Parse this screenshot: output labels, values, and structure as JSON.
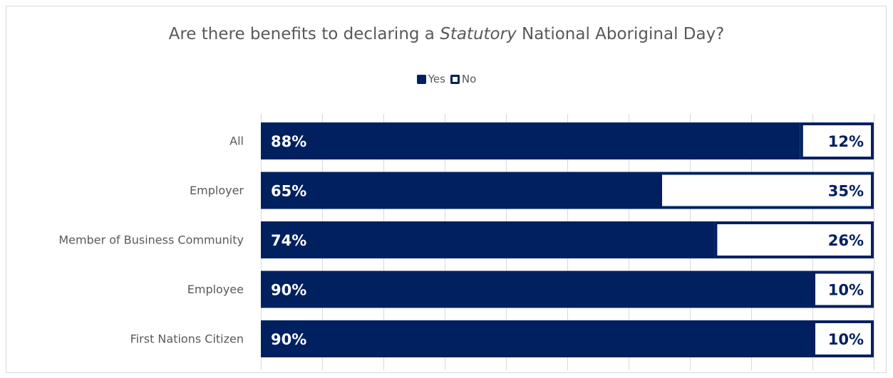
{
  "chart_data": {
    "type": "bar",
    "orientation": "horizontal",
    "stacked": true,
    "title_prefix": "Are there benefits to declaring a ",
    "title_emphasis": "Statutory",
    "title_suffix": " National Aboriginal Day?",
    "xlabel": "",
    "ylabel": "",
    "xlim": [
      0,
      100
    ],
    "grid": true,
    "legend_position": "top",
    "categories": [
      "All",
      "Employer",
      "Member of Business Community",
      "Employee",
      "First Nations Citizen"
    ],
    "series": [
      {
        "name": "Yes",
        "values": [
          88,
          65,
          74,
          90,
          90
        ],
        "labels": [
          "88%",
          "65%",
          "74%",
          "90%",
          "90%"
        ],
        "color": "#002060"
      },
      {
        "name": "No",
        "values": [
          12,
          35,
          26,
          10,
          10
        ],
        "labels": [
          "12%",
          "35%",
          "26%",
          "10%",
          "10%"
        ],
        "color": "#ffffff",
        "border_color": "#002060"
      }
    ]
  }
}
